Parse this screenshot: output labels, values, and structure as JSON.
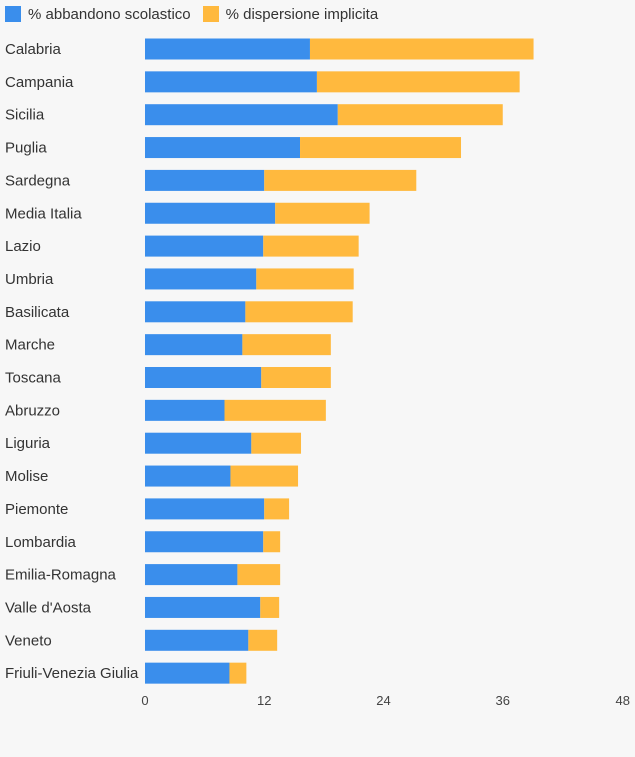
{
  "chart_data": {
    "type": "bar",
    "orientation": "horizontal",
    "stacked": true,
    "legend_position": "top-left",
    "grid": false,
    "categories": [
      "Calabria",
      "Campania",
      "Sicilia",
      "Puglia",
      "Sardegna",
      "Media Italia",
      "Lazio",
      "Umbria",
      "Basilicata",
      "Marche",
      "Toscana",
      "Abruzzo",
      "Liguria",
      "Molise",
      "Piemonte",
      "Lombardia",
      "Emilia-Romagna",
      "Valle d'Aosta",
      "Veneto",
      "Friuli-Venezia Giulia"
    ],
    "series": [
      {
        "name": "% abbandono scolastico",
        "color": "#3a8eec",
        "values": [
          16.6,
          17.3,
          19.4,
          15.6,
          12.0,
          13.1,
          11.9,
          11.2,
          10.1,
          9.8,
          11.7,
          8.0,
          10.7,
          8.6,
          12.0,
          11.9,
          9.3,
          11.6,
          10.4,
          8.5
        ]
      },
      {
        "name": "% dispersione implicita",
        "color": "#ffb93e",
        "values": [
          22.5,
          20.4,
          16.6,
          16.2,
          15.3,
          9.5,
          9.6,
          9.8,
          10.8,
          8.9,
          7.0,
          10.2,
          5.0,
          6.8,
          2.5,
          1.7,
          4.3,
          1.9,
          2.9,
          1.7
        ]
      }
    ],
    "x_ticks": [
      "0",
      "12",
      "24",
      "36",
      "48"
    ],
    "xlim": [
      0,
      48
    ]
  }
}
